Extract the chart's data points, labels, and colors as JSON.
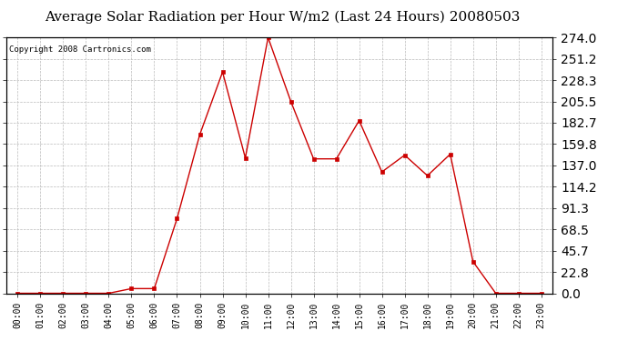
{
  "title": "Average Solar Radiation per Hour W/m2 (Last 24 Hours) 20080503",
  "copyright": "Copyright 2008 Cartronics.com",
  "hours": [
    "00:00",
    "01:00",
    "02:00",
    "03:00",
    "04:00",
    "05:00",
    "06:00",
    "07:00",
    "08:00",
    "09:00",
    "10:00",
    "11:00",
    "12:00",
    "13:00",
    "14:00",
    "15:00",
    "16:00",
    "17:00",
    "18:00",
    "19:00",
    "20:00",
    "21:00",
    "22:00",
    "23:00"
  ],
  "values": [
    0.0,
    0.0,
    0.0,
    0.0,
    0.0,
    5.0,
    5.0,
    80.0,
    170.0,
    237.0,
    145.0,
    274.0,
    205.5,
    144.0,
    144.0,
    185.0,
    130.0,
    148.0,
    126.0,
    149.0,
    34.0,
    0.0,
    0.0,
    0.0
  ],
  "line_color": "#cc0000",
  "marker_color": "#cc0000",
  "bg_color": "#ffffff",
  "grid_color": "#bbbbbb",
  "ymin": 0.0,
  "ymax": 274.0,
  "ytick_values": [
    0.0,
    22.8,
    45.7,
    68.5,
    91.3,
    114.2,
    137.0,
    159.8,
    182.7,
    205.5,
    228.3,
    251.2,
    274.0
  ],
  "ytick_labels": [
    "0.0",
    "22.8",
    "45.7",
    "68.5",
    "91.3",
    "114.2",
    "137.0",
    "159.8",
    "182.7",
    "205.5",
    "228.3",
    "251.2",
    "274.0"
  ],
  "title_fontsize": 11,
  "axis_fontsize": 7,
  "copyright_fontsize": 6.5
}
